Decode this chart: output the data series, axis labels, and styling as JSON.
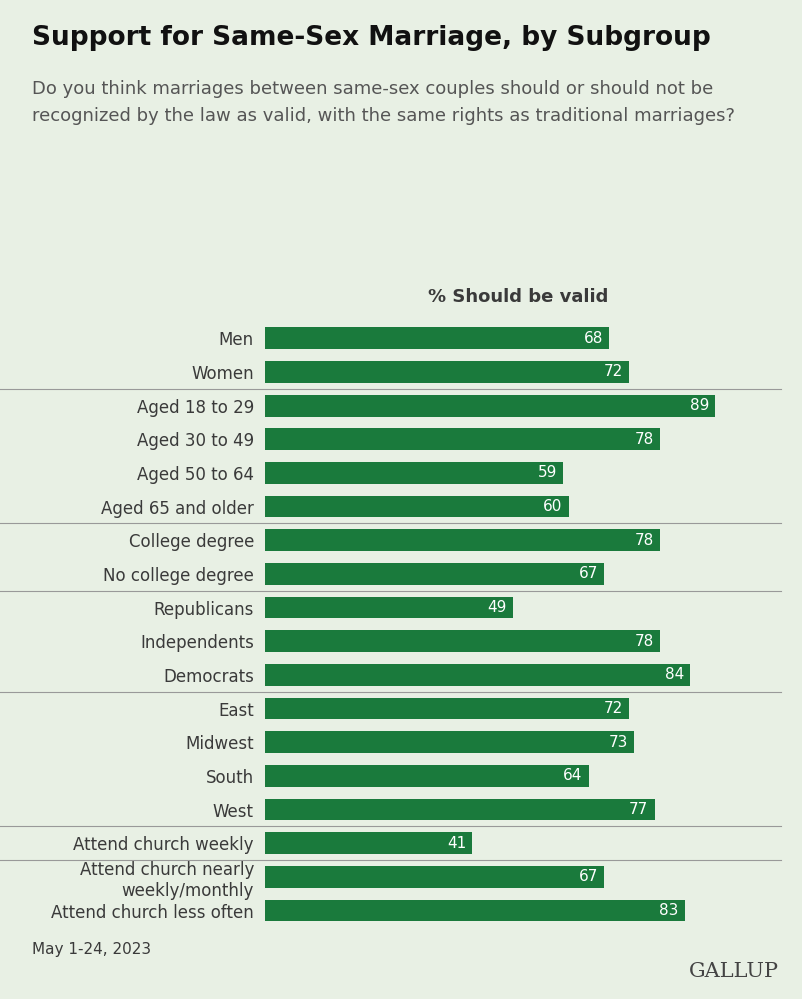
{
  "title": "Support for Same-Sex Marriage, by Subgroup",
  "subtitle_line1": "Do you think marriages between same-sex couples should or should not be",
  "subtitle_line2": "recognized by the law as valid, with the same rights as traditional marriages?",
  "axis_label": "% Should be valid",
  "categories": [
    "Men",
    "Women",
    "Aged 18 to 29",
    "Aged 30 to 49",
    "Aged 50 to 64",
    "Aged 65 and older",
    "College degree",
    "No college degree",
    "Republicans",
    "Independents",
    "Democrats",
    "East",
    "Midwest",
    "South",
    "West",
    "Attend church weekly",
    "Attend church nearly\nweekly/monthly",
    "Attend church less often"
  ],
  "values": [
    68,
    72,
    89,
    78,
    59,
    60,
    78,
    67,
    49,
    78,
    84,
    72,
    73,
    64,
    77,
    41,
    67,
    83
  ],
  "separators_after": [
    1,
    5,
    7,
    10,
    14,
    15
  ],
  "bar_color": "#1a7a3c",
  "background_color": "#e8f0e4",
  "text_color": "#3a3a3a",
  "value_label_color": "#ffffff",
  "footer_text": "May 1-24, 2023",
  "gallup_text": "GALLUP",
  "xlim": [
    0,
    100
  ],
  "title_fontsize": 19,
  "subtitle_fontsize": 13,
  "axis_label_fontsize": 13,
  "bar_label_fontsize": 11,
  "category_fontsize": 12,
  "footer_fontsize": 11,
  "gallup_fontsize": 15,
  "bar_height": 0.65
}
